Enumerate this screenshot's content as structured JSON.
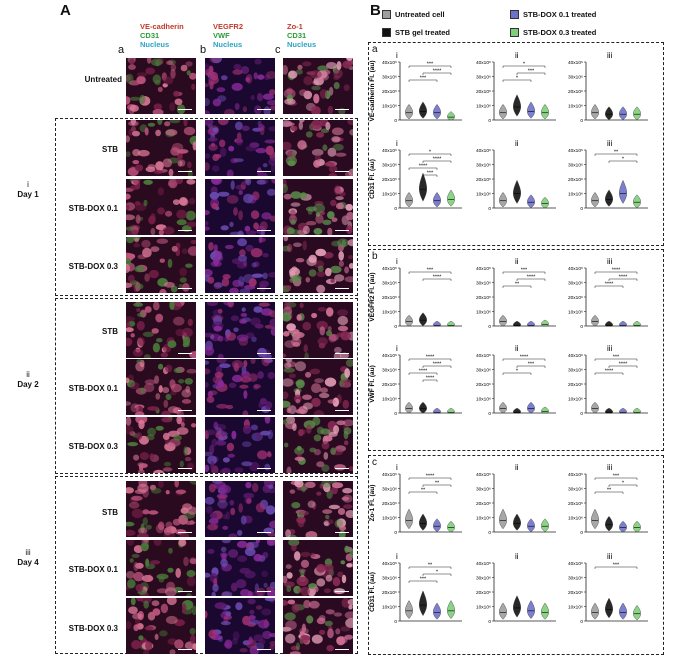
{
  "panel_a": {
    "letter": "A",
    "columns": [
      {
        "letter": "a",
        "markers": [
          "VE-cadherin",
          "CD31",
          "Nucleus"
        ],
        "marker_colors": [
          "#c0392b",
          "#2e9b3a",
          "#2aa3c4"
        ]
      },
      {
        "letter": "b",
        "markers": [
          "VEGFR2",
          "VWF",
          "Nucleus"
        ],
        "marker_colors": [
          "#c0392b",
          "#2e9b3a",
          "#2aa3c4"
        ]
      },
      {
        "letter": "c",
        "markers": [
          "Zo-1",
          "CD31",
          "Nucleus"
        ],
        "marker_colors": [
          "#c0392b",
          "#2e9b3a",
          "#2aa3c4"
        ]
      }
    ],
    "untreated_label": "Untreated",
    "groups": [
      {
        "roman": "i",
        "day": "Day 1",
        "rows": [
          "STB",
          "STB-DOX 0.1",
          "STB-DOX 0.3"
        ]
      },
      {
        "roman": "ii",
        "day": "Day 2",
        "rows": [
          "STB",
          "STB-DOX 0.1",
          "STB-DOX 0.3"
        ]
      },
      {
        "roman": "iii",
        "day": "Day 4",
        "rows": [
          "STB",
          "STB-DOX 0.1",
          "STB-DOX 0.3"
        ]
      }
    ]
  },
  "panel_b": {
    "letter": "B",
    "legend": [
      {
        "label": "Untreated cell",
        "color": "#9e9e9e"
      },
      {
        "label": "STB-DOX 0.1 treated",
        "color": "#6f72c9"
      },
      {
        "label": "STB gel treated",
        "color": "#111111"
      },
      {
        "label": "STB-DOX 0.3 treated",
        "color": "#7fcf7a"
      }
    ],
    "sections": [
      {
        "letter": "a",
        "rows": [
          {
            "ylabel": "VE-cadherin Fl. (au)",
            "cols": [
              {
                "roman": "i",
                "ticks": [
                  "40x10⁶",
                  "30x10⁶",
                  "20x10⁶",
                  "10x10⁶",
                  "0"
                ],
                "sig": [
                  "***",
                  "****",
                  "***"
                ]
              },
              {
                "roman": "ii",
                "ticks": [
                  "40x10⁶",
                  "30x10⁶",
                  "20x10⁶",
                  "10x10⁶",
                  "0"
                ],
                "sig": [
                  "*",
                  "***",
                  "*"
                ]
              },
              {
                "roman": "iii",
                "ticks": [
                  "40x10⁶",
                  "30x10⁶",
                  "20x10⁶",
                  "10x10⁶",
                  "0"
                ],
                "sig": []
              }
            ]
          },
          {
            "ylabel": "CD31 Fl. (au)",
            "cols": [
              {
                "roman": "i",
                "ticks": [
                  "40x10⁶",
                  "30x10⁶",
                  "20x10⁶",
                  "10x10⁶",
                  "0"
                ],
                "sig": [
                  "*",
                  "****",
                  "****",
                  "***"
                ]
              },
              {
                "roman": "ii",
                "ticks": [
                  "40x10⁶",
                  "30x10⁶",
                  "20x10⁶",
                  "10x10⁶",
                  "0"
                ],
                "sig": []
              },
              {
                "roman": "iii",
                "ticks": [
                  "40x10⁶",
                  "30x10⁶",
                  "20x10⁶",
                  "10x10⁶",
                  "0"
                ],
                "sig": [
                  "**",
                  "*"
                ]
              }
            ]
          }
        ]
      },
      {
        "letter": "b",
        "rows": [
          {
            "ylabel": "VEGFR2 Fl. (au)",
            "cols": [
              {
                "roman": "i",
                "ticks": [
                  "40x10⁶",
                  "30x10⁶",
                  "20x10⁶",
                  "10x10⁶",
                  "0"
                ],
                "sig": [
                  "***",
                  "****"
                ]
              },
              {
                "roman": "ii",
                "ticks": [
                  "40x10⁶",
                  "30x10⁶",
                  "20x10⁶",
                  "10x10⁶",
                  "0"
                ],
                "sig": [
                  "***",
                  "****",
                  "**"
                ]
              },
              {
                "roman": "iii",
                "ticks": [
                  "40x10⁶",
                  "30x10⁶",
                  "20x10⁶",
                  "10x10⁶",
                  "0"
                ],
                "sig": [
                  "****",
                  "****",
                  "****"
                ]
              }
            ]
          },
          {
            "ylabel": "VWF Fl. (au)",
            "cols": [
              {
                "roman": "i",
                "ticks": [
                  "40x10⁶",
                  "30x10⁶",
                  "20x10⁶",
                  "10x10⁶",
                  "0"
                ],
                "sig": [
                  "****",
                  "****",
                  "****",
                  "****"
                ]
              },
              {
                "roman": "ii",
                "ticks": [
                  "40x10⁶",
                  "30x10⁶",
                  "20x10⁶",
                  "10x10⁶",
                  "0"
                ],
                "sig": [
                  "****",
                  "***",
                  "*"
                ]
              },
              {
                "roman": "iii",
                "ticks": [
                  "40x10⁶",
                  "30x10⁶",
                  "20x10⁶",
                  "10x10⁶",
                  "0"
                ],
                "sig": [
                  "***",
                  "****",
                  "****"
                ]
              }
            ]
          }
        ]
      },
      {
        "letter": "c",
        "rows": [
          {
            "ylabel": "Zo-1 Fl. (au)",
            "cols": [
              {
                "roman": "i",
                "ticks": [
                  "40x10⁶",
                  "30x10⁶",
                  "20x10⁶",
                  "10x10⁶",
                  "0"
                ],
                "sig": [
                  "****",
                  "**",
                  "**"
                ]
              },
              {
                "roman": "ii",
                "ticks": [
                  "40x10⁶",
                  "30x10⁶",
                  "20x10⁶",
                  "10x10⁶",
                  "0"
                ],
                "sig": []
              },
              {
                "roman": "iii",
                "ticks": [
                  "40x10⁶",
                  "30x10⁶",
                  "20x10⁶",
                  "10x10⁶",
                  "0"
                ],
                "sig": [
                  "***",
                  "*",
                  "**"
                ]
              }
            ]
          },
          {
            "ylabel": "CD31 Fl. (au)",
            "cols": [
              {
                "roman": "i",
                "ticks": [
                  "40x10⁶",
                  "30x10⁶",
                  "20x10⁶",
                  "10x10⁶",
                  "0"
                ],
                "sig": [
                  "**",
                  "*",
                  "***"
                ]
              },
              {
                "roman": "ii",
                "ticks": [
                  "40x10⁶",
                  "30x10⁶",
                  "20x10⁶",
                  "10x10⁶",
                  "0"
                ],
                "sig": []
              },
              {
                "roman": "iii",
                "ticks": [
                  "40x10⁶",
                  "30x10⁶",
                  "20x10⁶",
                  "10x10⁶",
                  "0"
                ],
                "sig": [
                  "***"
                ]
              }
            ]
          }
        ]
      }
    ]
  },
  "chart_data": [
    {
      "type": "violin",
      "section": "a",
      "ylabel": "VE-cadherin Fl. (au)",
      "panels": [
        "i",
        "ii",
        "iii"
      ],
      "ylim": [
        0,
        40000000
      ],
      "series": [
        {
          "name": "Untreated cell",
          "medians": [
            5000000,
            5000000,
            5000000
          ]
        },
        {
          "name": "STB gel treated",
          "medians": [
            6000000,
            9000000,
            4000000
          ]
        },
        {
          "name": "STB-DOX 0.1 treated",
          "medians": [
            5000000,
            6000000,
            4000000
          ]
        },
        {
          "name": "STB-DOX 0.3 treated",
          "medians": [
            2000000,
            5000000,
            4000000
          ]
        }
      ]
    },
    {
      "type": "violin",
      "section": "a",
      "ylabel": "CD31 Fl. (au)",
      "panels": [
        "i",
        "ii",
        "iii"
      ],
      "ylim": [
        0,
        40000000
      ],
      "series": [
        {
          "name": "Untreated cell",
          "medians": [
            5000000,
            5000000,
            5000000
          ]
        },
        {
          "name": "STB gel treated",
          "medians": [
            13000000,
            10000000,
            6000000
          ]
        },
        {
          "name": "STB-DOX 0.1 treated",
          "medians": [
            5000000,
            4000000,
            10000000
          ]
        },
        {
          "name": "STB-DOX 0.3 treated",
          "medians": [
            6000000,
            3000000,
            4000000
          ]
        }
      ]
    },
    {
      "type": "violin",
      "section": "b",
      "ylabel": "VEGFR2 Fl. (au)",
      "panels": [
        "i",
        "ii",
        "iii"
      ],
      "ylim": [
        0,
        40000000
      ],
      "series": [
        {
          "name": "Untreated cell",
          "medians": [
            3000000,
            3000000,
            3000000
          ]
        },
        {
          "name": "STB gel treated",
          "medians": [
            4000000,
            500000,
            500000
          ]
        },
        {
          "name": "STB-DOX 0.1 treated",
          "medians": [
            500000,
            500000,
            500000
          ]
        },
        {
          "name": "STB-DOX 0.3 treated",
          "medians": [
            500000,
            1000000,
            500000
          ]
        }
      ]
    },
    {
      "type": "violin",
      "section": "b",
      "ylabel": "VWF Fl. (au)",
      "panels": [
        "i",
        "ii",
        "iii"
      ],
      "ylim": [
        0,
        40000000
      ],
      "series": [
        {
          "name": "Untreated cell",
          "medians": [
            3000000,
            3000000,
            3000000
          ]
        },
        {
          "name": "STB gel treated",
          "medians": [
            3000000,
            500000,
            500000
          ]
        },
        {
          "name": "STB-DOX 0.1 treated",
          "medians": [
            500000,
            3000000,
            500000
          ]
        },
        {
          "name": "STB-DOX 0.3 treated",
          "medians": [
            500000,
            1000000,
            500000
          ]
        }
      ]
    },
    {
      "type": "violin",
      "section": "c",
      "ylabel": "Zo-1 Fl. (au)",
      "panels": [
        "i",
        "ii",
        "iii"
      ],
      "ylim": [
        0,
        40000000
      ],
      "series": [
        {
          "name": "Untreated cell",
          "medians": [
            8000000,
            8000000,
            8000000
          ]
        },
        {
          "name": "STB gel treated",
          "medians": [
            6000000,
            6000000,
            5000000
          ]
        },
        {
          "name": "STB-DOX 0.1 treated",
          "medians": [
            4000000,
            4000000,
            3000000
          ]
        },
        {
          "name": "STB-DOX 0.3 treated",
          "medians": [
            3000000,
            4000000,
            3000000
          ]
        }
      ]
    },
    {
      "type": "violin",
      "section": "c",
      "ylabel": "CD31 Fl. (au)",
      "panels": [
        "i",
        "ii",
        "iii"
      ],
      "ylim": [
        0,
        40000000
      ],
      "series": [
        {
          "name": "Untreated cell",
          "medians": [
            7000000,
            6000000,
            6000000
          ]
        },
        {
          "name": "STB gel treated",
          "medians": [
            11000000,
            9000000,
            8000000
          ]
        },
        {
          "name": "STB-DOX 0.1 treated",
          "medians": [
            6000000,
            7000000,
            6000000
          ]
        },
        {
          "name": "STB-DOX 0.3 treated",
          "medians": [
            7000000,
            6000000,
            5000000
          ]
        }
      ]
    }
  ],
  "colors": {
    "untreated": "#9e9e9e",
    "stb": "#111111",
    "dox01": "#6f72c9",
    "dox03": "#7fcf7a"
  }
}
